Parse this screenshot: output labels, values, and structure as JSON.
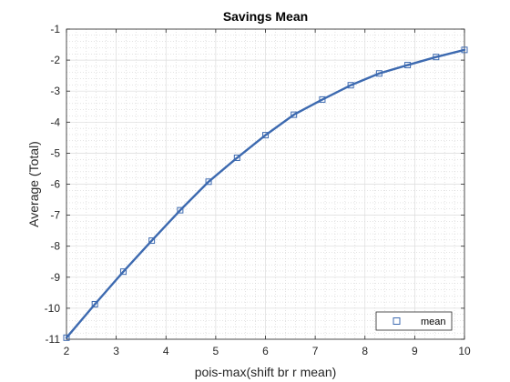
{
  "chart_data": {
    "type": "line",
    "title": "Savings Mean",
    "xlabel": "pois-max(shift br r mean)",
    "ylabel": "Average (Total)",
    "xlim": [
      2,
      10
    ],
    "ylim": [
      -11,
      -1
    ],
    "xticks": [
      "2",
      "3",
      "4",
      "5",
      "6",
      "7",
      "8",
      "9",
      "10"
    ],
    "yticks": [
      "-11",
      "-10",
      "-9",
      "-8",
      "-7",
      "-6",
      "-5",
      "-4",
      "-3",
      "-2",
      "-1"
    ],
    "grid": true,
    "minor_grid": true,
    "legend_position": "bottom-right",
    "series": [
      {
        "name": "mean",
        "color": "#3d6ab0",
        "marker": "square",
        "x": [
          2.0,
          2.571,
          3.143,
          3.714,
          4.286,
          4.857,
          5.429,
          6.0,
          6.571,
          7.143,
          7.714,
          8.286,
          8.857,
          9.429,
          10.0
        ],
        "y": [
          -10.95,
          -9.87,
          -8.82,
          -7.82,
          -6.84,
          -5.92,
          -5.15,
          -4.42,
          -3.76,
          -3.27,
          -2.81,
          -2.43,
          -2.16,
          -1.9,
          -1.67
        ]
      }
    ]
  }
}
